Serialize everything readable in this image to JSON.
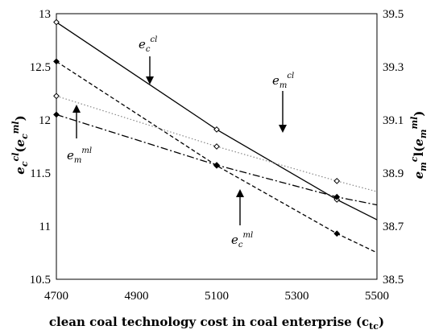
{
  "chart_data": {
    "type": "line",
    "x": [
      4700,
      5100,
      5400
    ],
    "xlim": [
      4700,
      5500
    ],
    "xticks": [
      "4700",
      "4900",
      "5100",
      "5300",
      "5500"
    ],
    "xlabel": "clean coal technology cost in coal enterprise (ctc)",
    "ylim_left": [
      10.5,
      13
    ],
    "yticks_left": [
      "10.5",
      "11",
      "11.5",
      "12",
      "12.5",
      "13"
    ],
    "ylim_right": [
      38.5,
      39.5
    ],
    "yticks_right": [
      "38.5",
      "38.7",
      "38.9",
      "39.1",
      "39.3",
      "39.5"
    ],
    "ylabel_left": "ecl(eml)",
    "ylabel_right": "emcl(eml)",
    "grid": false,
    "series": [
      {
        "axis": "left",
        "style": "solid",
        "marker": "open-diamond",
        "x": [
          4700,
          5100,
          5400
        ],
        "values": [
          12.92,
          11.91,
          11.25
        ],
        "line_to": [
          5500,
          11.06
        ]
      },
      {
        "axis": "left",
        "style": "dashed",
        "marker": "filled-diamond",
        "x": [
          4700,
          5100,
          5400
        ],
        "values": [
          12.55,
          11.57,
          10.93
        ],
        "line_to": [
          5500,
          10.75
        ]
      },
      {
        "axis": "right",
        "style": "dotted",
        "marker": "open-diamond",
        "x": [
          4700,
          5100,
          5400
        ],
        "values": [
          39.19,
          39.0,
          38.87
        ],
        "line_to": [
          5500,
          38.83
        ]
      },
      {
        "axis": "right",
        "style": "dash-dot",
        "marker": "filled-diamond",
        "x": [
          4700,
          5100,
          5400
        ],
        "values": [
          39.12,
          38.93,
          38.81
        ],
        "line_to": [
          5500,
          38.78
        ]
      }
    ],
    "annotations": [
      {
        "base": "e",
        "sub": "c",
        "sup": "cl",
        "arrow": "down"
      },
      {
        "base": "e",
        "sub": "m",
        "sup": "cl",
        "arrow": "down"
      },
      {
        "base": "e",
        "sub": "m",
        "sup": "ml",
        "arrow": "up"
      },
      {
        "base": "e",
        "sub": "c",
        "sup": "ml",
        "arrow": "up"
      }
    ]
  }
}
